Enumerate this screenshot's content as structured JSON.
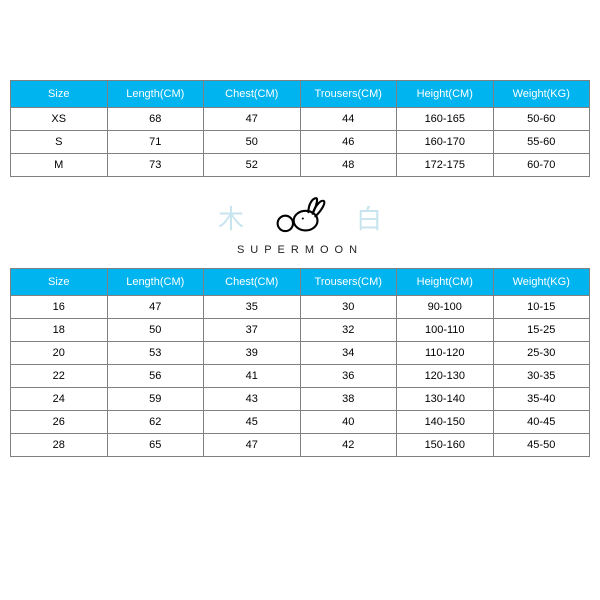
{
  "header_bg": "#00b4f0",
  "header_color": "#ffffff",
  "border_color": "#808080",
  "cell_bg": "#ffffff",
  "cell_color": "#000000",
  "cjk_color": "#c8e4ef",
  "brand_text": "SUPERMOON",
  "cjk_left": "木",
  "cjk_right": "白",
  "columns": [
    "Size",
    "Length(CM)",
    "Chest(CM)",
    "Trousers(CM)",
    "Height(CM)",
    "Weight(KG)"
  ],
  "table1": {
    "rows": [
      [
        "XS",
        "68",
        "47",
        "44",
        "160-165",
        "50-60"
      ],
      [
        "S",
        "71",
        "50",
        "46",
        "160-170",
        "55-60"
      ],
      [
        "M",
        "73",
        "52",
        "48",
        "172-175",
        "60-70"
      ]
    ]
  },
  "table2": {
    "rows": [
      [
        "16",
        "47",
        "35",
        "30",
        "90-100",
        "10-15"
      ],
      [
        "18",
        "50",
        "37",
        "32",
        "100-110",
        "15-25"
      ],
      [
        "20",
        "53",
        "39",
        "34",
        "110-120",
        "25-30"
      ],
      [
        "22",
        "56",
        "41",
        "36",
        "120-130",
        "30-35"
      ],
      [
        "24",
        "59",
        "43",
        "38",
        "130-140",
        "35-40"
      ],
      [
        "26",
        "62",
        "45",
        "40",
        "140-150",
        "40-45"
      ],
      [
        "28",
        "65",
        "47",
        "42",
        "150-160",
        "45-50"
      ]
    ]
  }
}
